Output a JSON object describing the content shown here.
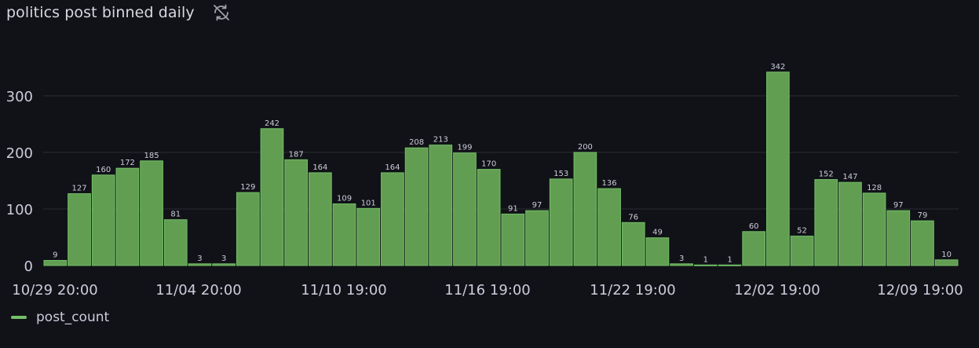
{
  "panel": {
    "title": "politics post binned daily",
    "status_icon": "sync-off-icon"
  },
  "colors": {
    "bar_fill": "#629e51",
    "bar_stroke": "#73bf69",
    "grid": "#2a2c33",
    "text": "#ccccdc",
    "background": "#111217"
  },
  "chart_data": {
    "type": "bar",
    "title": "politics post binned daily",
    "xlabel": "",
    "ylabel": "",
    "ylim": [
      0,
      350
    ],
    "yticks": [
      0,
      100,
      200,
      300
    ],
    "xtick_labels": [
      "10/29 20:00",
      "11/04 20:00",
      "11/10 19:00",
      "11/16 19:00",
      "11/22 19:00",
      "12/02 19:00",
      "12/09 19:00"
    ],
    "grid": true,
    "legend_position": "bottom-left",
    "series": [
      {
        "name": "post_count",
        "values": [
          9,
          127,
          160,
          172,
          185,
          81,
          3,
          3,
          129,
          242,
          187,
          164,
          109,
          101,
          164,
          208,
          213,
          199,
          170,
          91,
          97,
          153,
          200,
          136,
          76,
          49,
          3,
          1,
          1,
          60,
          342,
          52,
          152,
          147,
          128,
          97,
          79,
          10
        ]
      }
    ]
  }
}
